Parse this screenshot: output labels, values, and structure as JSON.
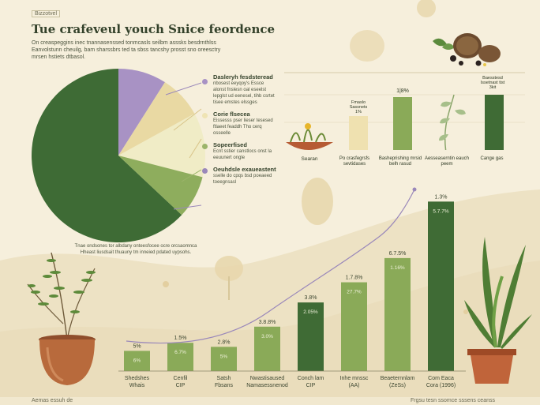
{
  "header": {
    "tag": "Bizzotvel",
    "title": "Tue crafeveul youch Snice feordence",
    "intro": "On creaspeggins inec tnannasenssed tonmcasls seilbm asssks besdrnthlss Eanvolstunn cheuilg, bam sharssbrs ted ta sbss tancshy prosst sno oreesctry mrsen hstiets dtbasol."
  },
  "pie": {
    "note": "Tnae ondsones tor albdany onteesfocee ocre orcsaomnca Hheast liusdsait thuauny tm inneied pdated uypsohs."
  },
  "legend": [
    {
      "heading": "Dasleryh fesdsteread",
      "text": "nbosest eeyqoy's Essce alonst fnslesn oal eseelst lepglst ud eenesel, tihb csrtet tisee emstes elssges",
      "color": "#a892c4"
    },
    {
      "heading": "Corie flsecea",
      "text": "Eissesss pser lieser tesesed ftlaeet feaddh Tho cerq osseelle",
      "color": "#efe4b4"
    },
    {
      "heading": "Sopeerfised",
      "text": "Ecnt sstier canstlocs onst la eeuunert ongle",
      "color": "#9bb46a"
    },
    {
      "heading": "Oeuhdsle exaueastent",
      "text": "sselle do cpqs bsd poeaeed toeegnsasl",
      "color": "#9a88ba"
    }
  ],
  "top_chart_callouts": {
    "pot": "Searan",
    "p1": "Po crasfegrsfs sevtidases",
    "p2": "Basheprishing mrsid belh rasud",
    "p3": "Aesseaserntin eauch peem",
    "p4": "Cange gas",
    "bar1_top": "Fmaslo Sassnets 1%",
    "bar2_top": "1|8%",
    "bar4_top": "Baesstesd Issetnast tist 3kit"
  },
  "chart_data": [
    {
      "type": "pie",
      "values": [
        63,
        9,
        8,
        12,
        8
      ],
      "colors": [
        "#3e6b35",
        "#a892c4",
        "#e9d9a3",
        "#f0ecc6",
        "#8ead5d"
      ]
    },
    {
      "type": "bar",
      "categories": [
        "Shedshes Whais",
        "Cenfil CIP",
        "Satsh Fbsans",
        "Nwastisaused Namasessnenod",
        "Conch lam CIP",
        "Inhe mnssc (AA)",
        "Beaeternnlam (ZeSs)",
        "Com Eaca Cora (1996)"
      ],
      "values": [
        5,
        7,
        6,
        11,
        17,
        22,
        28,
        42
      ],
      "top_labels": [
        "5%",
        "1.5%",
        "2.8%",
        "3.8.8%",
        "3.8%",
        "1.7.8%",
        "6.7.5%",
        "1.3%"
      ],
      "inner_labels": [
        "6%",
        "6.7%",
        "5%",
        "3.0%",
        "2.05%",
        "27.7%",
        "1.16%",
        "5.7.7%"
      ],
      "colors": [
        "#8aaa58",
        "#8aaa58",
        "#8aaa58",
        "#8aaa58",
        "#3f6b35",
        "#8aaa58",
        "#8aaa58",
        "#3f6b35"
      ],
      "ylim": [
        0,
        45
      ]
    }
  ],
  "footer": {
    "left": "Aemas essuh de",
    "right": "Frgsu tesn ssomce sssens ceanss"
  }
}
